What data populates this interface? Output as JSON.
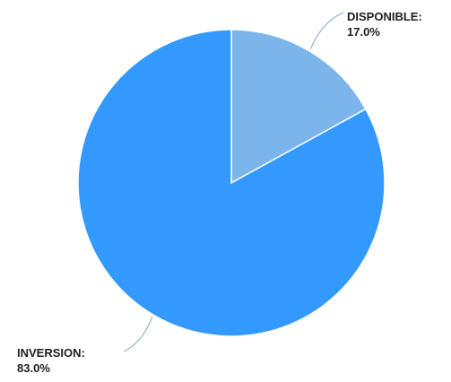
{
  "chart_data": {
    "type": "pie",
    "slices": [
      {
        "label": "DISPONIBLE:",
        "value": 17.0,
        "value_label": "17.0%",
        "color": "#7cb5ec"
      },
      {
        "label": "INVERSION:",
        "value": 83.0,
        "value_label": "83.0%",
        "color": "#3399ff"
      }
    ],
    "start_angle": "12 o'clock",
    "direction": "clockwise",
    "slice_border_color": "#ffffff",
    "leader_line_color": "#7fa7d0"
  }
}
